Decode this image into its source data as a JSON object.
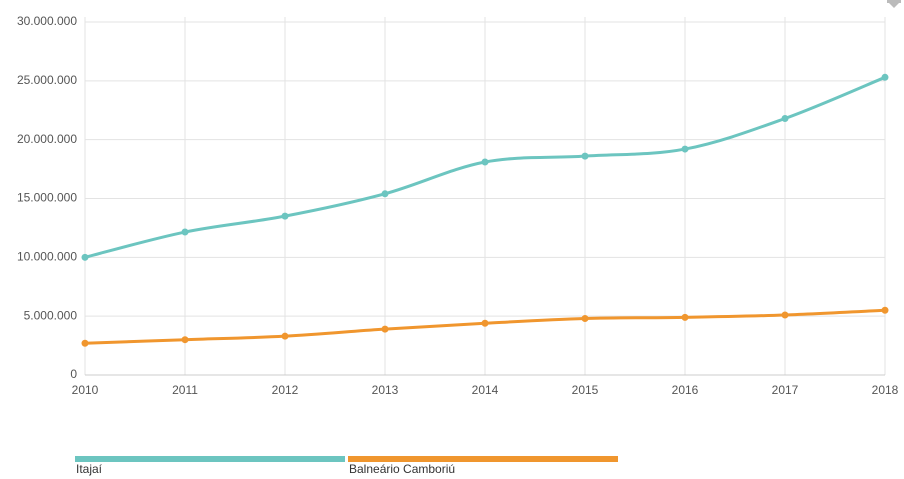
{
  "chart_data": {
    "type": "line",
    "x": [
      2010,
      2011,
      2012,
      2013,
      2014,
      2015,
      2016,
      2017,
      2018
    ],
    "xlim": [
      2010,
      2018
    ],
    "series": [
      {
        "name": "Itajaí",
        "color": "#6cc5c0",
        "values": [
          10000000,
          12150000,
          13500000,
          15400000,
          18100000,
          18600000,
          19200000,
          21800000,
          25300000
        ]
      },
      {
        "name": "Balneário Camboriú",
        "color": "#f0962e",
        "values": [
          2700000,
          3000000,
          3300000,
          3900000,
          4400000,
          4800000,
          4900000,
          5100000,
          5500000
        ]
      }
    ],
    "ylim": [
      0,
      30000000
    ],
    "yticks": [
      0,
      {
        "value": 5000000,
        "label": "5.000.000"
      },
      {
        "value": 10000000,
        "label": "10.000.000"
      },
      {
        "value": 15000000,
        "label": "15.000.000"
      },
      {
        "value": 20000000,
        "label": "20.000.000"
      },
      {
        "value": 25000000,
        "label": "25.000.000"
      },
      {
        "value": 30000000,
        "label": "30.000.000"
      }
    ],
    "grid": true
  }
}
